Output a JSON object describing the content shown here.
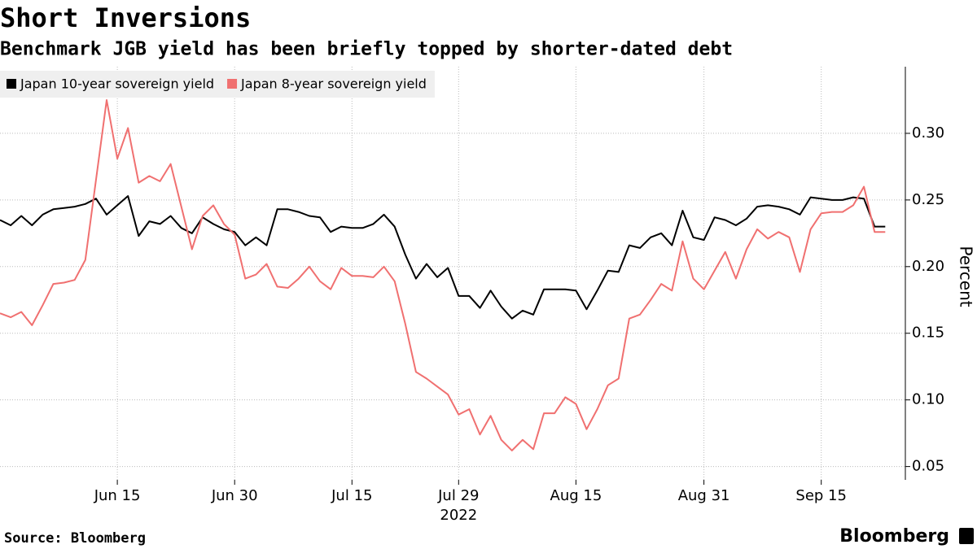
{
  "chart_data": {
    "type": "line",
    "title": "Short Inversions",
    "subtitle": "Benchmark JGB yield has been briefly topped by shorter-dated debt",
    "ylabel": "Percent",
    "x_year_label": "2022",
    "source": "Source: Bloomberg",
    "brand": "Bloomberg",
    "x": [
      "2022-05-31",
      "2022-06-01",
      "2022-06-02",
      "2022-06-03",
      "2022-06-06",
      "2022-06-07",
      "2022-06-08",
      "2022-06-09",
      "2022-06-10",
      "2022-06-13",
      "2022-06-14",
      "2022-06-15",
      "2022-06-16",
      "2022-06-17",
      "2022-06-20",
      "2022-06-21",
      "2022-06-22",
      "2022-06-23",
      "2022-06-24",
      "2022-06-27",
      "2022-06-28",
      "2022-06-29",
      "2022-06-30",
      "2022-07-01",
      "2022-07-04",
      "2022-07-05",
      "2022-07-06",
      "2022-07-07",
      "2022-07-08",
      "2022-07-11",
      "2022-07-12",
      "2022-07-13",
      "2022-07-14",
      "2022-07-15",
      "2022-07-18",
      "2022-07-19",
      "2022-07-20",
      "2022-07-21",
      "2022-07-22",
      "2022-07-25",
      "2022-07-26",
      "2022-07-27",
      "2022-07-28",
      "2022-07-29",
      "2022-08-01",
      "2022-08-02",
      "2022-08-03",
      "2022-08-04",
      "2022-08-05",
      "2022-08-08",
      "2022-08-09",
      "2022-08-10",
      "2022-08-11",
      "2022-08-12",
      "2022-08-15",
      "2022-08-16",
      "2022-08-17",
      "2022-08-18",
      "2022-08-19",
      "2022-08-22",
      "2022-08-23",
      "2022-08-24",
      "2022-08-25",
      "2022-08-26",
      "2022-08-29",
      "2022-08-30",
      "2022-08-31",
      "2022-09-01",
      "2022-09-02",
      "2022-09-05",
      "2022-09-06",
      "2022-09-07",
      "2022-09-08",
      "2022-09-09",
      "2022-09-12",
      "2022-09-13",
      "2022-09-14",
      "2022-09-15",
      "2022-09-16",
      "2022-09-19",
      "2022-09-20",
      "2022-09-21",
      "2022-09-22",
      "2022-09-23"
    ],
    "xticks": [
      {
        "value": "2022-06-15",
        "label": "Jun 15"
      },
      {
        "value": "2022-06-30",
        "label": "Jun 30"
      },
      {
        "value": "2022-07-15",
        "label": "Jul 15"
      },
      {
        "value": "2022-07-29",
        "label": "Jul 29"
      },
      {
        "value": "2022-08-15",
        "label": "Aug 15"
      },
      {
        "value": "2022-08-31",
        "label": "Aug 31"
      },
      {
        "value": "2022-09-15",
        "label": "Sep 15"
      }
    ],
    "year_tick": 3,
    "ylim": [
      0.04,
      0.35
    ],
    "yticks": [
      0.05,
      {
        "value": 0.1,
        "label": "0.10"
      },
      0.15,
      {
        "value": 0.2,
        "label": "0.20"
      },
      0.25,
      {
        "value": 0.3,
        "label": "0.30"
      }
    ],
    "grid": true,
    "legend": "top-left",
    "series": [
      {
        "name": "Japan 10-year sovereign yield",
        "color": "#000000",
        "values": [
          0.235,
          0.231,
          0.238,
          0.231,
          0.239,
          0.243,
          0.244,
          0.245,
          0.247,
          0.251,
          0.239,
          0.246,
          0.253,
          0.223,
          0.234,
          0.232,
          0.238,
          0.229,
          0.225,
          0.237,
          0.232,
          0.228,
          0.226,
          0.216,
          0.222,
          0.216,
          0.243,
          0.243,
          0.241,
          0.238,
          0.237,
          0.226,
          0.23,
          0.229,
          0.229,
          0.232,
          0.239,
          0.23,
          0.209,
          0.191,
          0.202,
          0.192,
          0.199,
          0.178,
          0.178,
          0.169,
          0.182,
          0.17,
          0.161,
          0.167,
          0.164,
          0.183,
          0.183,
          0.183,
          0.182,
          0.168,
          0.182,
          0.197,
          0.196,
          0.216,
          0.214,
          0.222,
          0.225,
          0.216,
          0.242,
          0.222,
          0.22,
          0.237,
          0.235,
          0.231,
          0.236,
          0.245,
          0.246,
          0.245,
          0.243,
          0.239,
          0.252,
          0.251,
          0.25,
          0.25,
          0.252,
          0.251,
          0.23,
          0.23
        ]
      },
      {
        "name": "Japan 8-year sovereign yield",
        "color": "#f07070",
        "values": [
          0.165,
          0.162,
          0.166,
          0.156,
          0.171,
          0.187,
          0.188,
          0.19,
          0.205,
          0.265,
          0.325,
          0.281,
          0.304,
          0.263,
          0.268,
          0.264,
          0.277,
          0.245,
          0.213,
          0.238,
          0.246,
          0.232,
          0.224,
          0.191,
          0.194,
          0.202,
          0.185,
          0.184,
          0.191,
          0.2,
          0.189,
          0.183,
          0.199,
          0.193,
          0.193,
          0.192,
          0.2,
          0.189,
          0.157,
          0.121,
          0.116,
          0.11,
          0.104,
          0.089,
          0.093,
          0.074,
          0.088,
          0.07,
          0.062,
          0.07,
          0.063,
          0.09,
          0.09,
          0.102,
          0.097,
          0.078,
          0.093,
          0.111,
          0.116,
          0.161,
          0.164,
          0.175,
          0.187,
          0.182,
          0.219,
          0.191,
          0.183,
          0.197,
          0.211,
          0.191,
          0.213,
          0.228,
          0.221,
          0.226,
          0.222,
          0.196,
          0.228,
          0.24,
          0.241,
          0.241,
          0.246,
          0.26,
          0.226,
          0.226
        ]
      }
    ]
  }
}
